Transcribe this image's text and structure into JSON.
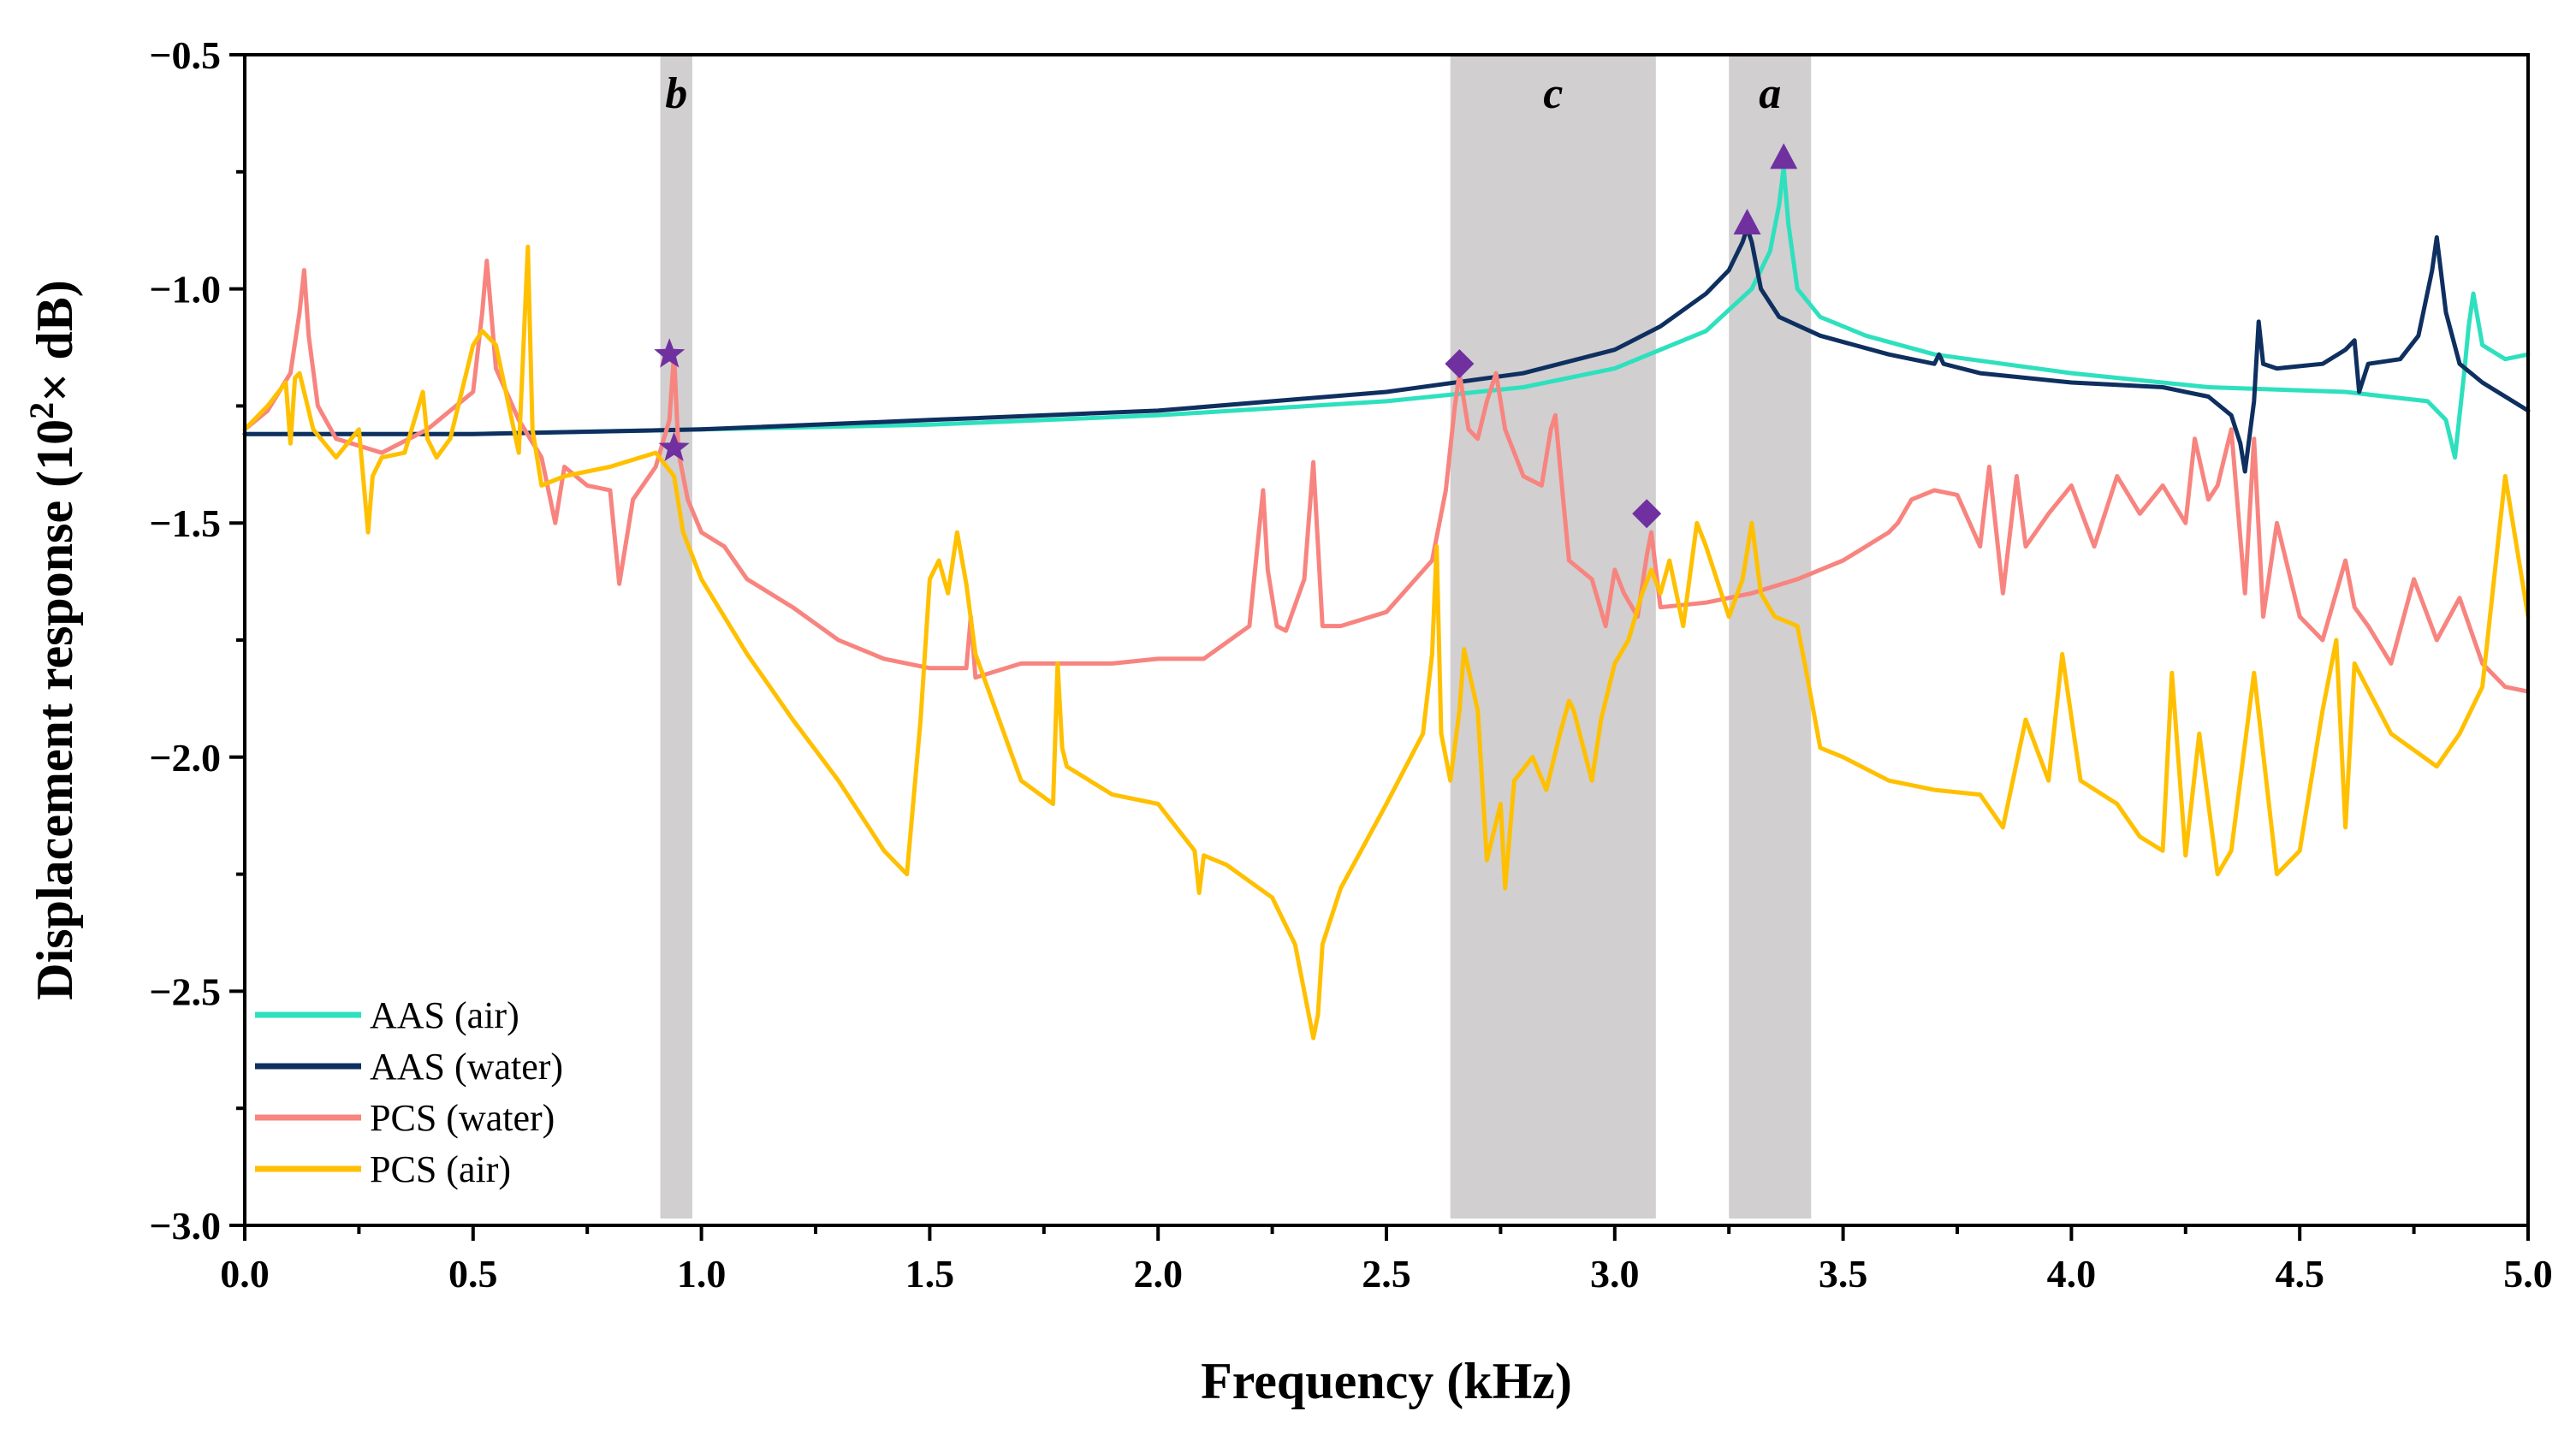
{
  "chart_data": {
    "type": "line",
    "title": "",
    "xlabel": "Frequency (kHz)",
    "ylabel_parts": [
      "Displacement response (10",
      "2",
      "× dB)"
    ],
    "xlim": [
      0.0,
      5.0
    ],
    "ylim": [
      -3.0,
      -0.5
    ],
    "xticks": [
      0.0,
      0.5,
      1.0,
      1.5,
      2.0,
      2.5,
      3.0,
      3.5,
      4.0,
      4.5,
      5.0
    ],
    "xtick_labels": [
      "0.0",
      "0.5",
      "1.0",
      "1.5",
      "2.0",
      "2.5",
      "3.0",
      "3.5",
      "4.0",
      "4.5",
      "5.0"
    ],
    "yticks": [
      -3.0,
      -2.5,
      -2.0,
      -1.5,
      -1.0,
      -0.5
    ],
    "ytick_labels": [
      "−3.0",
      "−2.5",
      "−2.0",
      "−1.5",
      "−1.0",
      "−0.5"
    ],
    "grid": false,
    "legend_position": "bottom-left",
    "bands": [
      {
        "label": "b",
        "x0": 0.91,
        "x1": 0.98
      },
      {
        "label": "c",
        "x0": 2.64,
        "x1": 3.09
      },
      {
        "label": "a",
        "x0": 3.25,
        "x1": 3.43
      }
    ],
    "series": [
      {
        "name": "AAS (air)",
        "color": "#2EE0BE",
        "x": [
          0.0,
          0.5,
          1.0,
          1.5,
          2.0,
          2.5,
          2.8,
          3.0,
          3.2,
          3.3,
          3.34,
          3.36,
          3.37,
          3.38,
          3.4,
          3.45,
          3.55,
          3.7,
          4.0,
          4.3,
          4.6,
          4.78,
          4.82,
          4.84,
          4.86,
          4.87,
          4.88,
          4.9,
          4.95,
          5.0
        ],
        "values": [
          -1.31,
          -1.31,
          -1.3,
          -1.29,
          -1.27,
          -1.24,
          -1.21,
          -1.17,
          -1.09,
          -1.0,
          -0.92,
          -0.82,
          -0.74,
          -0.86,
          -1.0,
          -1.06,
          -1.1,
          -1.14,
          -1.18,
          -1.21,
          -1.22,
          -1.24,
          -1.28,
          -1.36,
          -1.18,
          -1.08,
          -1.01,
          -1.12,
          -1.15,
          -1.14
        ]
      },
      {
        "name": "AAS (water)",
        "color": "#0E2F5F",
        "x": [
          0.0,
          0.5,
          1.0,
          1.5,
          2.0,
          2.5,
          2.8,
          3.0,
          3.1,
          3.2,
          3.25,
          3.28,
          3.29,
          3.3,
          3.32,
          3.36,
          3.45,
          3.6,
          3.7,
          3.71,
          3.72,
          3.8,
          4.0,
          4.2,
          4.3,
          4.35,
          4.37,
          4.38,
          4.4,
          4.41,
          4.42,
          4.45,
          4.55,
          4.6,
          4.62,
          4.63,
          4.65,
          4.72,
          4.76,
          4.79,
          4.8,
          4.82,
          4.85,
          4.9,
          5.0
        ],
        "values": [
          -1.31,
          -1.31,
          -1.3,
          -1.28,
          -1.26,
          -1.22,
          -1.18,
          -1.13,
          -1.08,
          -1.01,
          -0.96,
          -0.9,
          -0.87,
          -0.9,
          -1.0,
          -1.06,
          -1.1,
          -1.14,
          -1.16,
          -1.14,
          -1.16,
          -1.18,
          -1.2,
          -1.21,
          -1.23,
          -1.27,
          -1.33,
          -1.39,
          -1.24,
          -1.07,
          -1.16,
          -1.17,
          -1.16,
          -1.13,
          -1.11,
          -1.22,
          -1.16,
          -1.15,
          -1.1,
          -0.96,
          -0.89,
          -1.05,
          -1.16,
          -1.2,
          -1.26
        ]
      },
      {
        "name": "PCS (water)",
        "color": "#F8847F",
        "x": [
          0.0,
          0.05,
          0.1,
          0.12,
          0.13,
          0.14,
          0.16,
          0.2,
          0.3,
          0.4,
          0.5,
          0.52,
          0.53,
          0.55,
          0.6,
          0.65,
          0.68,
          0.7,
          0.75,
          0.8,
          0.82,
          0.85,
          0.9,
          0.93,
          0.94,
          0.95,
          0.97,
          1.0,
          1.05,
          1.1,
          1.2,
          1.3,
          1.4,
          1.5,
          1.58,
          1.59,
          1.6,
          1.7,
          1.8,
          1.9,
          2.0,
          2.1,
          2.2,
          2.23,
          2.24,
          2.26,
          2.28,
          2.32,
          2.34,
          2.36,
          2.4,
          2.5,
          2.6,
          2.63,
          2.65,
          2.66,
          2.68,
          2.7,
          2.72,
          2.74,
          2.76,
          2.8,
          2.84,
          2.86,
          2.87,
          2.89,
          2.9,
          2.95,
          2.98,
          3.0,
          3.02,
          3.05,
          3.07,
          3.08,
          3.1,
          3.2,
          3.3,
          3.4,
          3.45,
          3.5,
          3.55,
          3.6,
          3.62,
          3.65,
          3.7,
          3.75,
          3.8,
          3.82,
          3.85,
          3.88,
          3.9,
          3.95,
          4.0,
          4.05,
          4.1,
          4.15,
          4.2,
          4.25,
          4.27,
          4.3,
          4.32,
          4.35,
          4.38,
          4.4,
          4.42,
          4.45,
          4.5,
          4.55,
          4.6,
          4.62,
          4.65,
          4.7,
          4.75,
          4.8,
          4.85,
          4.9,
          4.95,
          5.0
        ],
        "values": [
          -1.3,
          -1.26,
          -1.18,
          -1.05,
          -0.96,
          -1.1,
          -1.25,
          -1.32,
          -1.35,
          -1.3,
          -1.22,
          -1.05,
          -0.94,
          -1.17,
          -1.28,
          -1.36,
          -1.5,
          -1.38,
          -1.42,
          -1.43,
          -1.63,
          -1.45,
          -1.38,
          -1.28,
          -1.14,
          -1.35,
          -1.45,
          -1.52,
          -1.55,
          -1.62,
          -1.68,
          -1.75,
          -1.79,
          -1.81,
          -1.81,
          -1.7,
          -1.83,
          -1.8,
          -1.8,
          -1.8,
          -1.79,
          -1.79,
          -1.72,
          -1.43,
          -1.6,
          -1.72,
          -1.73,
          -1.62,
          -1.37,
          -1.72,
          -1.72,
          -1.69,
          -1.58,
          -1.43,
          -1.25,
          -1.18,
          -1.3,
          -1.32,
          -1.24,
          -1.18,
          -1.3,
          -1.4,
          -1.42,
          -1.3,
          -1.27,
          -1.48,
          -1.58,
          -1.62,
          -1.72,
          -1.6,
          -1.65,
          -1.7,
          -1.57,
          -1.52,
          -1.68,
          -1.67,
          -1.65,
          -1.62,
          -1.6,
          -1.58,
          -1.55,
          -1.52,
          -1.5,
          -1.45,
          -1.43,
          -1.44,
          -1.55,
          -1.38,
          -1.65,
          -1.4,
          -1.55,
          -1.48,
          -1.42,
          -1.55,
          -1.4,
          -1.48,
          -1.42,
          -1.5,
          -1.32,
          -1.45,
          -1.42,
          -1.3,
          -1.65,
          -1.32,
          -1.7,
          -1.5,
          -1.7,
          -1.75,
          -1.58,
          -1.68,
          -1.72,
          -1.8,
          -1.62,
          -1.75,
          -1.66,
          -1.8,
          -1.85,
          -1.86
        ]
      },
      {
        "name": "PCS (air)",
        "color": "#FFC000",
        "x": [
          0.0,
          0.05,
          0.09,
          0.1,
          0.11,
          0.12,
          0.13,
          0.15,
          0.2,
          0.25,
          0.27,
          0.28,
          0.3,
          0.35,
          0.39,
          0.4,
          0.42,
          0.45,
          0.5,
          0.52,
          0.55,
          0.6,
          0.62,
          0.63,
          0.65,
          0.7,
          0.8,
          0.9,
          0.94,
          0.96,
          1.0,
          1.1,
          1.2,
          1.3,
          1.4,
          1.45,
          1.48,
          1.5,
          1.52,
          1.54,
          1.56,
          1.58,
          1.6,
          1.7,
          1.77,
          1.78,
          1.79,
          1.8,
          1.85,
          1.9,
          2.0,
          2.08,
          2.09,
          2.1,
          2.15,
          2.25,
          2.3,
          2.34,
          2.35,
          2.36,
          2.4,
          2.5,
          2.58,
          2.6,
          2.61,
          2.62,
          2.64,
          2.66,
          2.67,
          2.7,
          2.72,
          2.75,
          2.76,
          2.78,
          2.82,
          2.85,
          2.88,
          2.9,
          2.91,
          2.95,
          2.97,
          3.0,
          3.03,
          3.06,
          3.08,
          3.1,
          3.12,
          3.15,
          3.18,
          3.2,
          3.25,
          3.28,
          3.3,
          3.32,
          3.35,
          3.4,
          3.42,
          3.45,
          3.5,
          3.6,
          3.7,
          3.8,
          3.85,
          3.9,
          3.95,
          3.98,
          4.02,
          4.1,
          4.15,
          4.2,
          4.22,
          4.25,
          4.28,
          4.32,
          4.35,
          4.4,
          4.45,
          4.5,
          4.55,
          4.58,
          4.6,
          4.62,
          4.7,
          4.8,
          4.85,
          4.9,
          4.95,
          5.0
        ],
        "values": [
          -1.3,
          -1.25,
          -1.2,
          -1.33,
          -1.19,
          -1.18,
          -1.22,
          -1.3,
          -1.36,
          -1.3,
          -1.52,
          -1.4,
          -1.36,
          -1.35,
          -1.22,
          -1.32,
          -1.36,
          -1.32,
          -1.12,
          -1.09,
          -1.12,
          -1.35,
          -0.91,
          -1.3,
          -1.42,
          -1.4,
          -1.38,
          -1.35,
          -1.4,
          -1.52,
          -1.62,
          -1.78,
          -1.92,
          -2.05,
          -2.2,
          -2.25,
          -1.92,
          -1.62,
          -1.58,
          -1.65,
          -1.52,
          -1.63,
          -1.78,
          -2.05,
          -2.1,
          -1.8,
          -1.98,
          -2.02,
          -2.05,
          -2.08,
          -2.1,
          -2.2,
          -2.29,
          -2.21,
          -2.23,
          -2.3,
          -2.4,
          -2.6,
          -2.55,
          -2.4,
          -2.28,
          -2.1,
          -1.95,
          -1.78,
          -1.55,
          -1.95,
          -2.05,
          -1.9,
          -1.77,
          -1.9,
          -2.22,
          -2.1,
          -2.28,
          -2.05,
          -2.0,
          -2.07,
          -1.95,
          -1.88,
          -1.9,
          -2.05,
          -1.92,
          -1.8,
          -1.75,
          -1.65,
          -1.6,
          -1.65,
          -1.58,
          -1.72,
          -1.5,
          -1.55,
          -1.7,
          -1.62,
          -1.5,
          -1.65,
          -1.7,
          -1.72,
          -1.82,
          -1.98,
          -2.0,
          -2.05,
          -2.07,
          -2.08,
          -2.15,
          -1.92,
          -2.05,
          -1.78,
          -2.05,
          -2.1,
          -2.17,
          -2.2,
          -1.82,
          -2.21,
          -1.95,
          -2.25,
          -2.2,
          -1.82,
          -2.25,
          -2.2,
          -1.9,
          -1.75,
          -2.15,
          -1.8,
          -1.95,
          -2.02,
          -1.95,
          -1.85,
          -1.4,
          -1.7
        ]
      }
    ],
    "markers": [
      {
        "shape": "star",
        "color": "#7030A0",
        "x": 0.93,
        "y": -1.14
      },
      {
        "shape": "star",
        "color": "#7030A0",
        "x": 0.94,
        "y": -1.34
      },
      {
        "shape": "diamond",
        "color": "#7030A0",
        "x": 2.66,
        "y": -1.16
      },
      {
        "shape": "diamond",
        "color": "#7030A0",
        "x": 3.07,
        "y": -1.48
      },
      {
        "shape": "triangle",
        "color": "#7030A0",
        "x": 3.29,
        "y": -0.86
      },
      {
        "shape": "triangle",
        "color": "#7030A0",
        "x": 3.37,
        "y": -0.72
      }
    ]
  }
}
